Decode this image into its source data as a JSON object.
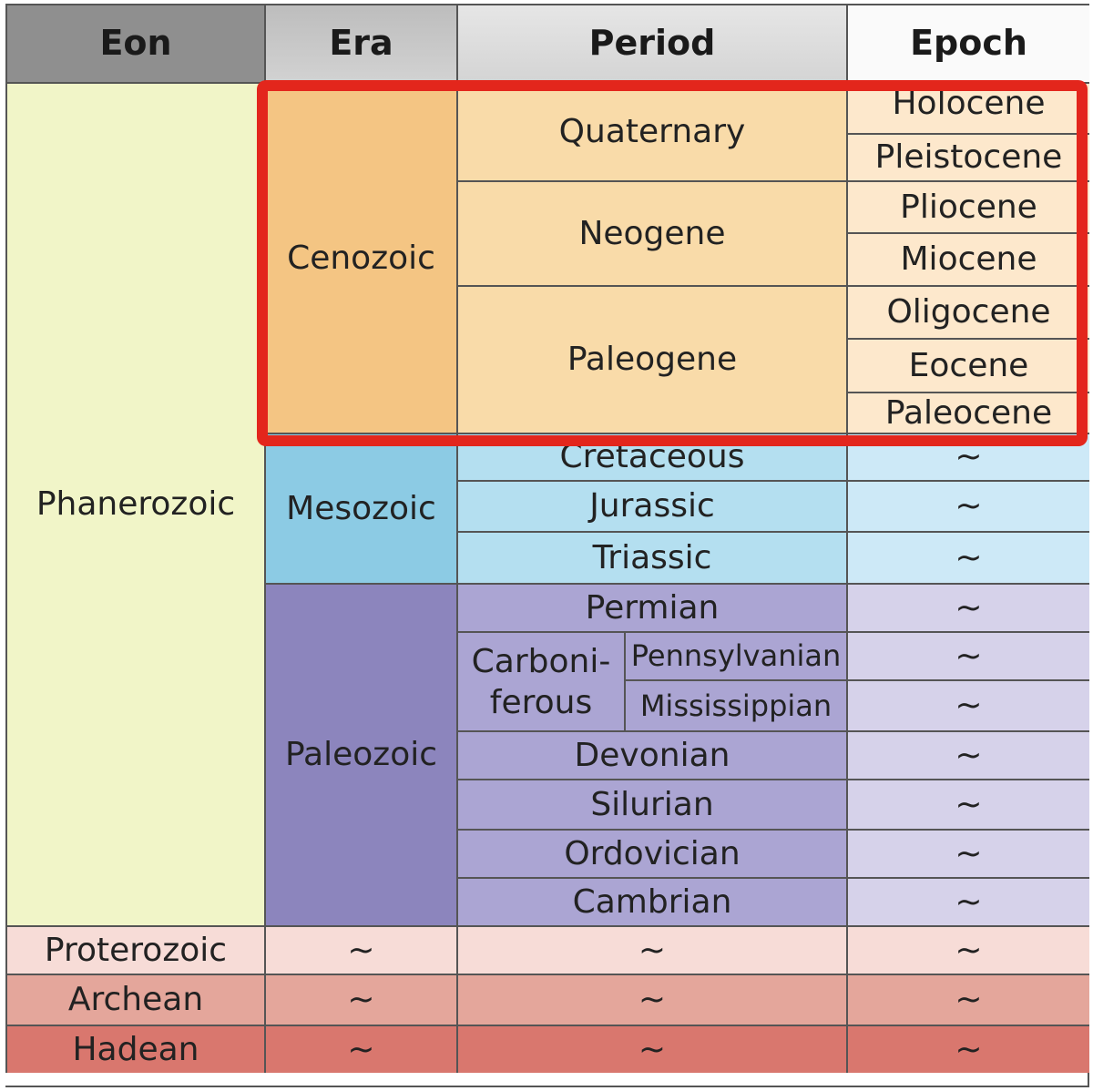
{
  "headers": {
    "eon": "Eon",
    "era": "Era",
    "period": "Period",
    "epoch": "Epoch"
  },
  "eons": {
    "phanerozoic": "Phanerozoic",
    "proterozoic": "Proterozoic",
    "archean": "Archean",
    "hadean": "Hadean"
  },
  "eras": {
    "cenozoic": "Cenozoic",
    "mesozoic": "Mesozoic",
    "paleozoic": "Paleozoic"
  },
  "periods": {
    "quaternary": "Quaternary",
    "neogene": "Neogene",
    "paleogene": "Paleogene",
    "cretaceous": "Cretaceous",
    "jurassic": "Jurassic",
    "triassic": "Triassic",
    "permian": "Permian",
    "carboniferous": "Carboni-\nferous",
    "pennsylvanian": "Pennsylvanian",
    "mississippian": "Mississippian",
    "devonian": "Devonian",
    "silurian": "Silurian",
    "ordovician": "Ordovician",
    "cambrian": "Cambrian"
  },
  "epochs": {
    "holocene": "Holocene",
    "pleistocene": "Pleistocene",
    "pliocene": "Pliocene",
    "miocene": "Miocene",
    "oligocene": "Oligocene",
    "eocene": "Eocene",
    "paleocene": "Paleocene"
  },
  "placeholder": "~",
  "colors": {
    "header_eon": "#8f8f8f",
    "header_era": "#bdbdbd",
    "header_period": "#dcdcdc",
    "header_epoch": "#fafafa",
    "phanerozoic": "#f1f5c8",
    "cenozoic": "#f4c583",
    "cenozoic_period": "#f9dba9",
    "cenozoic_epoch": "#fde8cc",
    "mesozoic": "#8ccbe4",
    "mesozoic_period": "#b4dff0",
    "mesozoic_epoch": "#cde9f7",
    "paleozoic": "#8c85bd",
    "paleozoic_period": "#aba5d3",
    "paleozoic_epoch": "#d6d2ea",
    "proterozoic": "#f7dcd7",
    "archean": "#e4a69b",
    "hadean": "#d9776e",
    "highlight": "#e3261c"
  }
}
